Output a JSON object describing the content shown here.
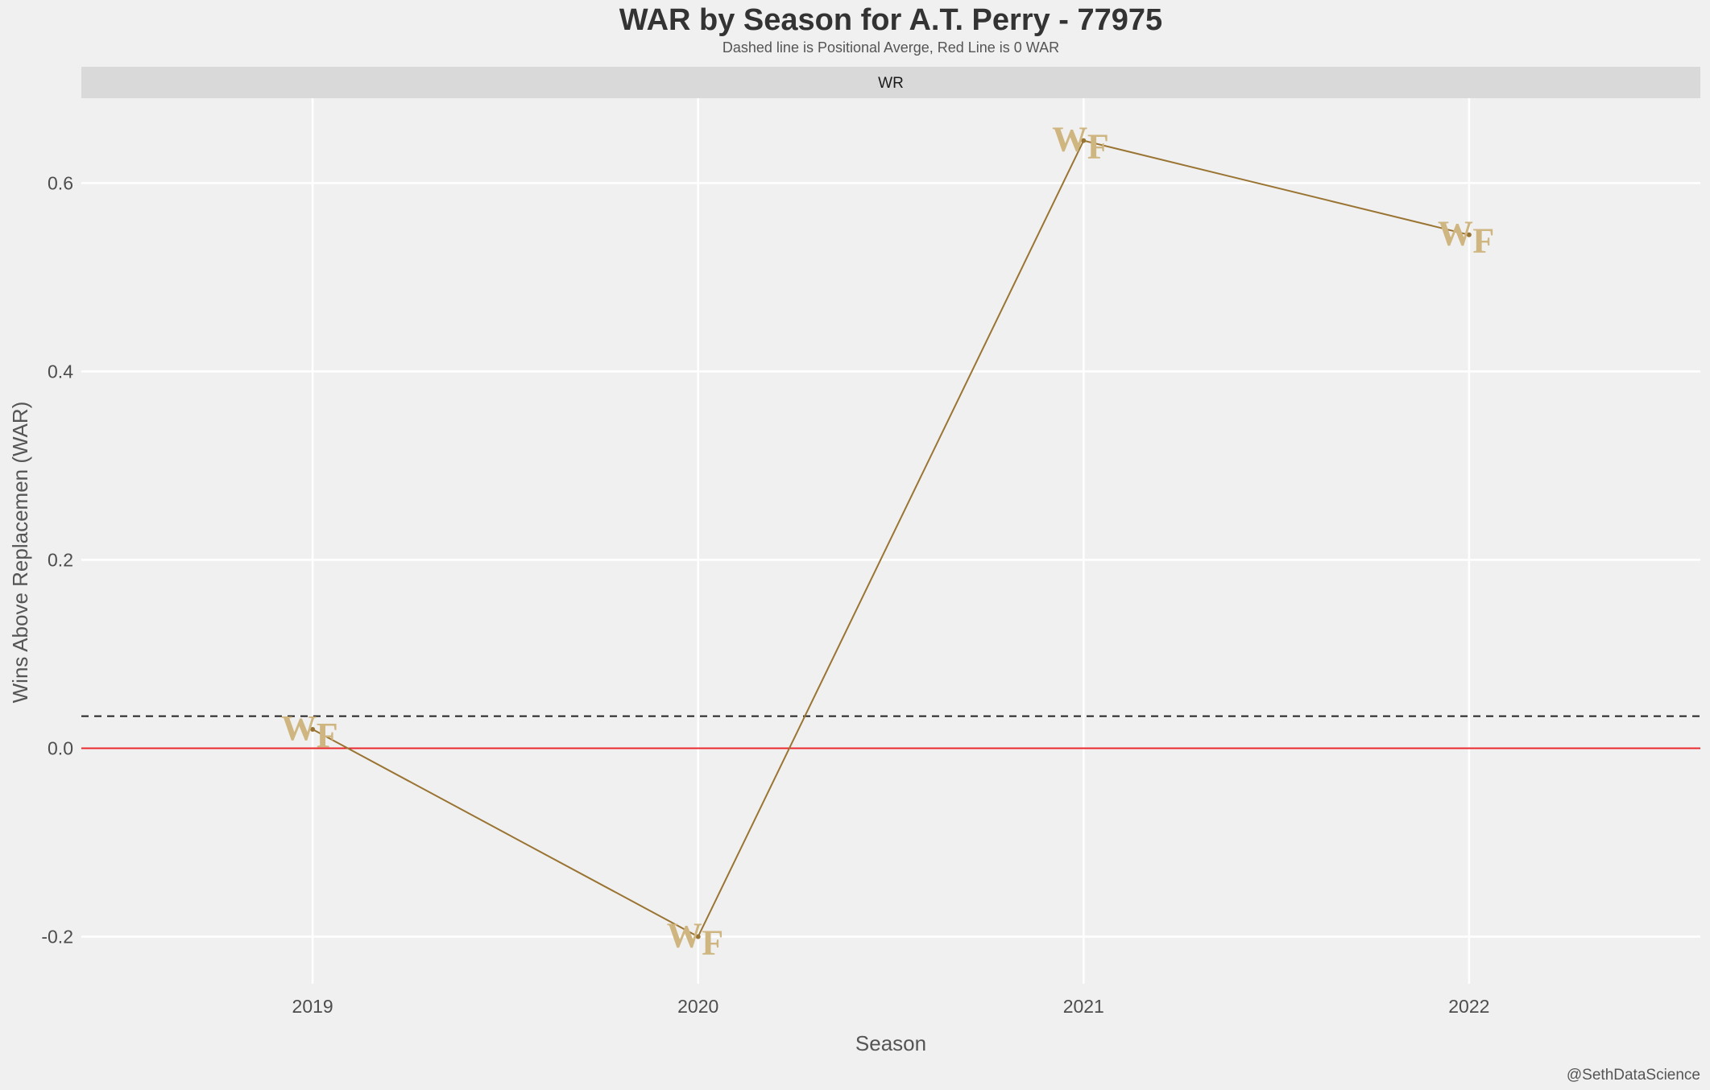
{
  "chart_data": {
    "type": "line",
    "title": "WAR by Season for A.T. Perry - 77975",
    "subtitle": "Dashed line is Positional Averge, Red Line is 0 WAR",
    "facet_label": "WR",
    "xlabel": "Season",
    "ylabel": "Wins Above Replacemen (WAR)",
    "caption": "@SethDataScience",
    "x": [
      2019,
      2020,
      2021,
      2022
    ],
    "x_tick_labels": [
      "2019",
      "2020",
      "2021",
      "2022"
    ],
    "xlim": [
      2018.4,
      2022.6
    ],
    "values": [
      0.02,
      -0.2,
      0.645,
      0.545
    ],
    "ylim": [
      -0.25,
      0.69
    ],
    "y_ticks": [
      -0.2,
      0.0,
      0.2,
      0.4,
      0.6
    ],
    "y_tick_labels": [
      "-0.2",
      "0.0",
      "0.2",
      "0.4",
      "0.6"
    ],
    "positional_average": 0.034,
    "zero_line": 0.0,
    "point_marker": "WF",
    "grid": true,
    "legend": "none",
    "colors": {
      "line": "#9a7432",
      "marker": "#cfb57f",
      "zero_line": "#e8262a",
      "average_line": "#222222",
      "background": "#f0f0f0",
      "grid": "#ffffff",
      "strip": "#d9d9d9"
    }
  }
}
